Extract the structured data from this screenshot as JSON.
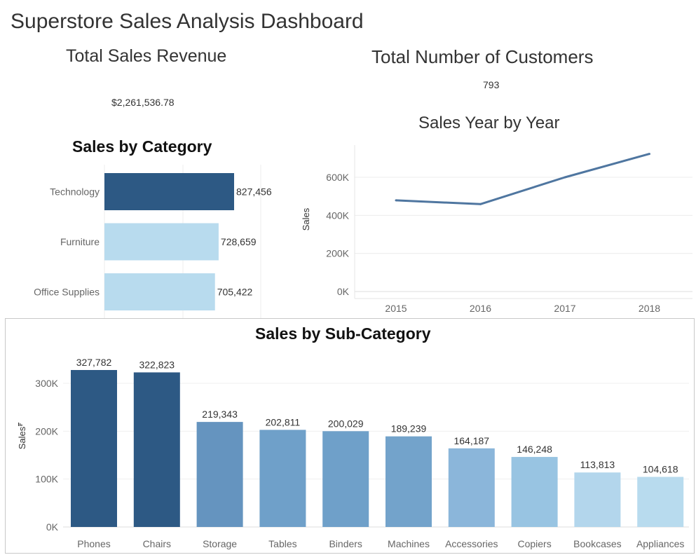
{
  "dashboard": {
    "title": "Superstore Sales Analysis Dashboard",
    "revenue_title": "Total Sales Revenue",
    "revenue_value": "$2,261,536.78",
    "customers_title": "Total Number of Customers",
    "customers_value": "793"
  },
  "colors": {
    "dark": "#2d5984",
    "mid": "#6a9ec7",
    "light": "#b8dbee",
    "line": "#4f76a0"
  },
  "chart_data": [
    {
      "id": "category",
      "type": "bar",
      "orientation": "horizontal",
      "title": "Sales by Category",
      "categories": [
        "Technology",
        "Furniture",
        "Office Supplies"
      ],
      "values": [
        827456,
        728659,
        705422
      ],
      "value_labels": [
        "827,456",
        "728,659",
        "705,422"
      ],
      "colors": [
        "#2d5984",
        "#b8dbee",
        "#b8dbee"
      ]
    },
    {
      "id": "yearly",
      "type": "line",
      "title": "Sales Year by Year",
      "ylabel": "Sales",
      "x": [
        "2015",
        "2016",
        "2017",
        "2018"
      ],
      "y": [
        479000,
        459000,
        600000,
        723000
      ],
      "ylim": [
        0,
        700000
      ],
      "yticks": [
        0,
        200000,
        400000,
        600000
      ],
      "ytick_labels": [
        "0K",
        "200K",
        "400K",
        "600K"
      ],
      "grid": true
    },
    {
      "id": "subcategory",
      "type": "bar",
      "title": "Sales by Sub-Category",
      "ylabel": "Sales",
      "categories": [
        "Phones",
        "Chairs",
        "Storage",
        "Tables",
        "Binders",
        "Machines",
        "Accessories",
        "Copiers",
        "Bookcases",
        "Appliances"
      ],
      "values": [
        327782,
        322823,
        219343,
        202811,
        200029,
        189239,
        164187,
        146248,
        113813,
        104618
      ],
      "value_labels": [
        "327,782",
        "322,823",
        "219,343",
        "202,811",
        "200,029",
        "189,239",
        "164,187",
        "146,248",
        "113,813",
        "104,618"
      ],
      "colors": [
        "#2d5984",
        "#2d5984",
        "#6594bf",
        "#6fa0c9",
        "#6fa0c9",
        "#73a3cb",
        "#8bb6da",
        "#98c4e2",
        "#b3d6ec",
        "#b8dbee"
      ],
      "yticks": [
        0,
        100000,
        200000,
        300000
      ],
      "ytick_labels": [
        "0K",
        "100K",
        "200K",
        "300K"
      ],
      "grid": true
    }
  ]
}
